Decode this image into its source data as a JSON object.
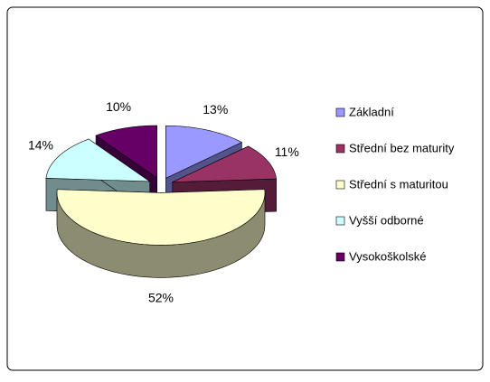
{
  "chart_data": {
    "type": "pie",
    "categories": [
      "Základní",
      "Střední bez maturity",
      "Střední s maturitou",
      "Vyšší odborné",
      "Vysokoškolské"
    ],
    "values": [
      13,
      11,
      52,
      14,
      10
    ],
    "value_labels": [
      "13%",
      "11%",
      "52%",
      "14%",
      "10%"
    ],
    "colors": [
      "#9999ff",
      "#993366",
      "#ffffcc",
      "#ccffff",
      "#660066"
    ],
    "legend": "right"
  }
}
